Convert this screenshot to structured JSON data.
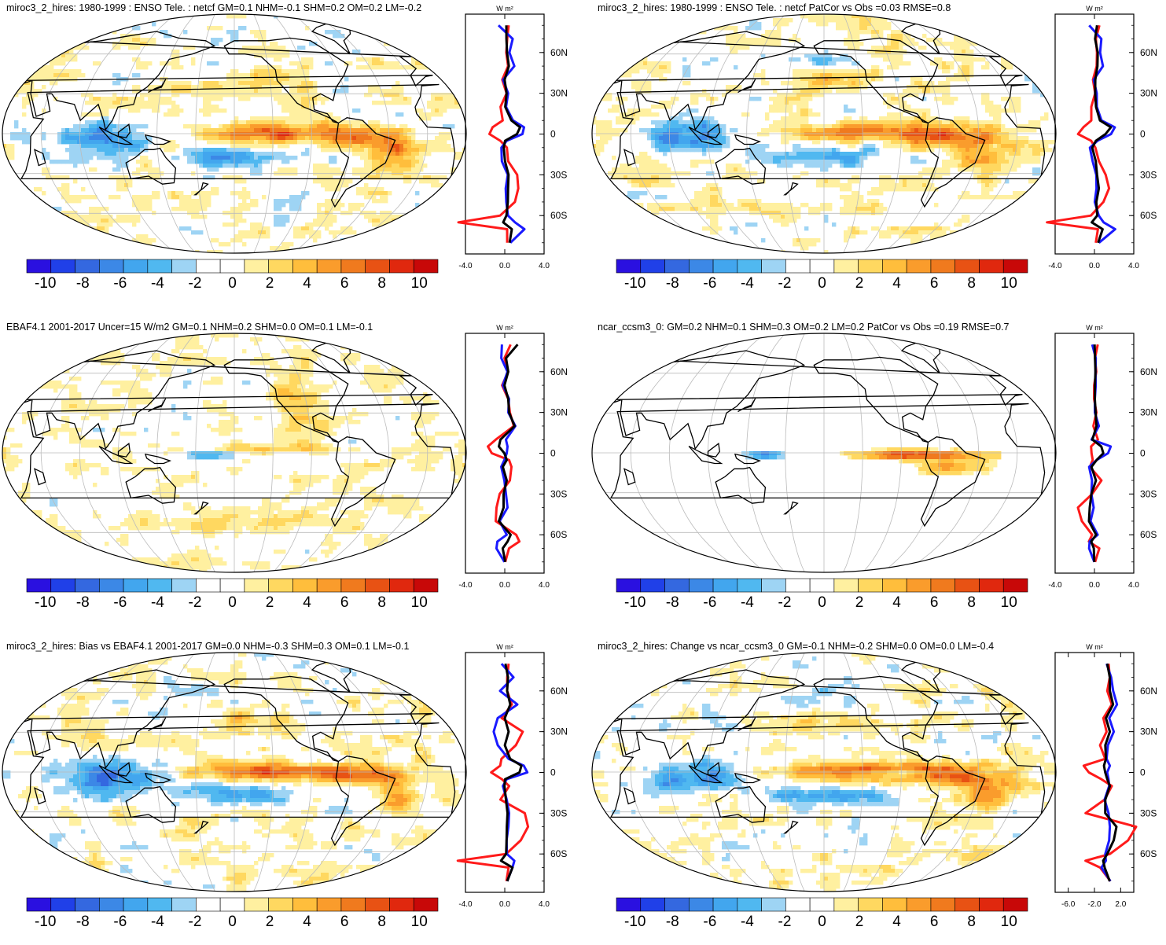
{
  "colors": {
    "scale": [
      "#2a10e0",
      "#2040e8",
      "#3468e0",
      "#3c88e6",
      "#42a6ee",
      "#50b8f0",
      "#9ed4f4",
      "#ffffff",
      "#ffffff",
      "#fff0a0",
      "#ffd860",
      "#ffbe3c",
      "#fa9c2c",
      "#f07a1e",
      "#e85214",
      "#e0280e",
      "#c80808"
    ],
    "land_line": "#000000",
    "grid": "#bbbbbb",
    "line_red": "#ff1a1a",
    "line_blue": "#1a1aff",
    "line_black": "#000000"
  },
  "colorbar_labels": [
    "-10",
    "-8",
    "-6",
    "-4",
    "-2",
    "0",
    "2",
    "4",
    "6",
    "8",
    "10"
  ],
  "profile_units": "W m²",
  "lat_labels": [
    "60N",
    "30N",
    "0",
    "30S",
    "60S"
  ],
  "panels": [
    {
      "title": "miroc3_2_hires: 1980-1999 : ENSO Tele. : netcf GM=0.1 NHM=-0.1 SHM=0.2 OM=0.2 LM=-0.2",
      "xticks": [
        "-4.0",
        "0.0",
        "4.0"
      ],
      "pattern": "model"
    },
    {
      "title": "miroc3_2_hires: 1980-1999 : ENSO Tele. : netcf PatCor vs Obs =0.03 RMSE=0.8",
      "xticks": [
        "-4.0",
        "0.0",
        "4.0"
      ],
      "pattern": "model"
    },
    {
      "title": "EBAF4.1 2001-2017 Uncer=15 W/m2 GM=0.1 NHM=0.2 SHM=0.0 OM=0.1 LM=-0.1",
      "xticks": [
        "-4.0",
        "0.0",
        "4.0"
      ],
      "pattern": "obs"
    },
    {
      "title": "ncar_ccsm3_0: GM=0.2 NHM=0.1 SHM=0.3 OM=0.2 LM=0.2 PatCor vs Obs =0.19 RMSE=0.7",
      "xticks": [
        "-4.0",
        "0.0",
        "4.0"
      ],
      "pattern": "ccsm"
    },
    {
      "title": "miroc3_2_hires: Bias vs EBAF4.1 2001-2017 GM=0.0 NHM=-0.3 SHM=0.3 OM=0.1 LM=-0.1",
      "xticks": [
        "-4.0",
        "0.0",
        "4.0"
      ],
      "pattern": "model"
    },
    {
      "title": "miroc3_2_hires: Change vs ncar_ccsm3_0 GM=-0.1 NHM=-0.2 SHM=0.0 OM=0.0 LM=-0.4",
      "xticks": [
        "-6.0",
        "-2.0",
        "2.0"
      ],
      "pattern": "change"
    }
  ],
  "chart_data": {
    "type": "heatmap",
    "colorbar": {
      "min": -11,
      "max": 11,
      "step": 1.3,
      "tick_values": [
        -10,
        -8,
        -6,
        -4,
        -2,
        0,
        2,
        4,
        6,
        8,
        10
      ]
    },
    "profile_latitudes": [
      80,
      70,
      60,
      50,
      40,
      30,
      20,
      10,
      5,
      0,
      -5,
      -10,
      -20,
      -30,
      -40,
      -50,
      -60,
      -65,
      -70,
      -80
    ],
    "profiles": [
      {
        "red": [
          0.5,
          0.3,
          0.2,
          0.4,
          -0.3,
          0.2,
          -0.5,
          -0.3,
          -1.5,
          -2,
          -0.5,
          0.2,
          0.5,
          1.5,
          1.8,
          1.2,
          -0.5,
          -6,
          0.4,
          0.2
        ],
        "blue": [
          -0.8,
          1,
          0.6,
          1.2,
          -0.2,
          0.4,
          0.2,
          1,
          2.5,
          2.2,
          0.3,
          -0.5,
          -0.3,
          0.3,
          0.2,
          0.1,
          0.5,
          1.2,
          2.6,
          0.6
        ],
        "black": [
          0.2,
          0.2,
          0.3,
          0.5,
          0,
          0.2,
          0.1,
          0.8,
          2,
          1.5,
          0.1,
          -0.2,
          0.1,
          0.4,
          0.5,
          0.3,
          0.3,
          -0.3,
          1,
          0.5
        ]
      },
      {
        "red": [
          0.5,
          0.3,
          0.2,
          0.4,
          -0.3,
          0.2,
          -0.5,
          -0.3,
          -1.5,
          -2,
          -0.5,
          0.2,
          0.5,
          1.5,
          1.8,
          1.2,
          -0.5,
          -6,
          0.4,
          0.2
        ],
        "blue": [
          -0.8,
          1,
          0.6,
          1.2,
          -0.2,
          0.4,
          0.2,
          1,
          2.5,
          2.2,
          0.3,
          -0.5,
          -0.3,
          0.3,
          0.2,
          0.1,
          0.5,
          1.2,
          2.6,
          0.6
        ],
        "black": [
          0.2,
          0.2,
          0.3,
          0.5,
          0,
          0.2,
          0.1,
          0.8,
          2,
          1.5,
          0.1,
          -0.2,
          0.1,
          0.4,
          0.5,
          0.3,
          0.3,
          -0.3,
          1,
          0.5
        ]
      },
      {
        "red": [
          0.6,
          0.1,
          0.3,
          -0.2,
          0.3,
          0.8,
          1,
          -1,
          -2.3,
          -1.5,
          0.4,
          1,
          0.5,
          -0.5,
          -1.2,
          -1,
          1.3,
          2,
          0.4,
          0.2
        ],
        "blue": [
          -0.5,
          -0.3,
          0.2,
          -0.1,
          0.4,
          0.6,
          1.2,
          0.3,
          0.2,
          0.4,
          -0.2,
          -0.3,
          -0.2,
          0.3,
          0.2,
          -0.5,
          0.1,
          -0.8,
          -1.2,
          0.1
        ],
        "black": [
          1.5,
          0.3,
          0.3,
          0.1,
          0.3,
          0.7,
          1.1,
          -0.4,
          -0.9,
          0.1,
          0.1,
          -0.1,
          0.1,
          0,
          -0.3,
          -0.6,
          0.6,
          0.5,
          -0.4,
          0.2
        ]
      },
      {
        "red": [
          0.4,
          0.1,
          0.2,
          0,
          -0.1,
          0.3,
          -0.2,
          0.5,
          -0.5,
          -0.3,
          -0.3,
          -0.5,
          0.8,
          -0.2,
          -2.2,
          -1.5,
          -0.4,
          -0.6,
          0.5,
          0.2
        ],
        "blue": [
          -0.3,
          0.2,
          0.1,
          0.2,
          0,
          0.1,
          0.5,
          -0.3,
          2,
          1.8,
          0.2,
          -0.6,
          -0.4,
          -0.3,
          -0.2,
          -0.4,
          0.3,
          -0.5,
          -0.8,
          0.1
        ],
        "black": [
          0,
          0.1,
          0.1,
          0.1,
          0,
          0.2,
          0.2,
          -0.2,
          0.8,
          1.2,
          0.2,
          -0.3,
          0.1,
          -0.3,
          -0.7,
          -0.6,
          0.1,
          -0.3,
          -0.2,
          0.1
        ]
      },
      {
        "red": [
          0.6,
          0.2,
          0.4,
          0.8,
          -0.3,
          2.2,
          1.5,
          -0.5,
          -0.5,
          -1.8,
          -0.3,
          0.5,
          -0.5,
          2.5,
          3,
          2,
          0.2,
          -6,
          0.5,
          0.2
        ],
        "blue": [
          -0.3,
          1,
          -0.5,
          1.5,
          -0.8,
          -1.5,
          -0.8,
          0.4,
          2.5,
          2.8,
          0.3,
          -0.3,
          0.3,
          0.5,
          0.5,
          0.2,
          0.3,
          1.2,
          1,
          0.3
        ],
        "black": [
          0.2,
          0.3,
          0.4,
          0.6,
          0.1,
          0.4,
          0.1,
          0.6,
          2.2,
          1.8,
          0.1,
          -0.1,
          0.2,
          0.3,
          0.3,
          0.2,
          0.2,
          -0.5,
          1,
          0.3
        ]
      },
      {
        "red": [
          0.3,
          0.2,
          0.1,
          0.5,
          -0.5,
          -0.3,
          -1,
          -0.5,
          -3.5,
          -3,
          -0.8,
          0.5,
          -0.3,
          -3.5,
          4.5,
          3,
          0.5,
          -3.5,
          -1,
          0.3
        ],
        "blue": [
          0,
          0.4,
          1,
          1.3,
          0.4,
          0.8,
          0.2,
          -0.3,
          0.5,
          -0.2,
          0.3,
          0.1,
          -0.3,
          0,
          0.5,
          0.1,
          -0.2,
          -0.4,
          -0.8,
          0.3
        ],
        "black": [
          0.1,
          0.2,
          0.5,
          0.7,
          -0.1,
          0.2,
          -0.2,
          -0.4,
          -0.4,
          -0.5,
          0.1,
          0.2,
          -0.2,
          -0.5,
          1.5,
          0.8,
          0.1,
          -0.8,
          -0.3,
          0.2
        ]
      }
    ]
  }
}
